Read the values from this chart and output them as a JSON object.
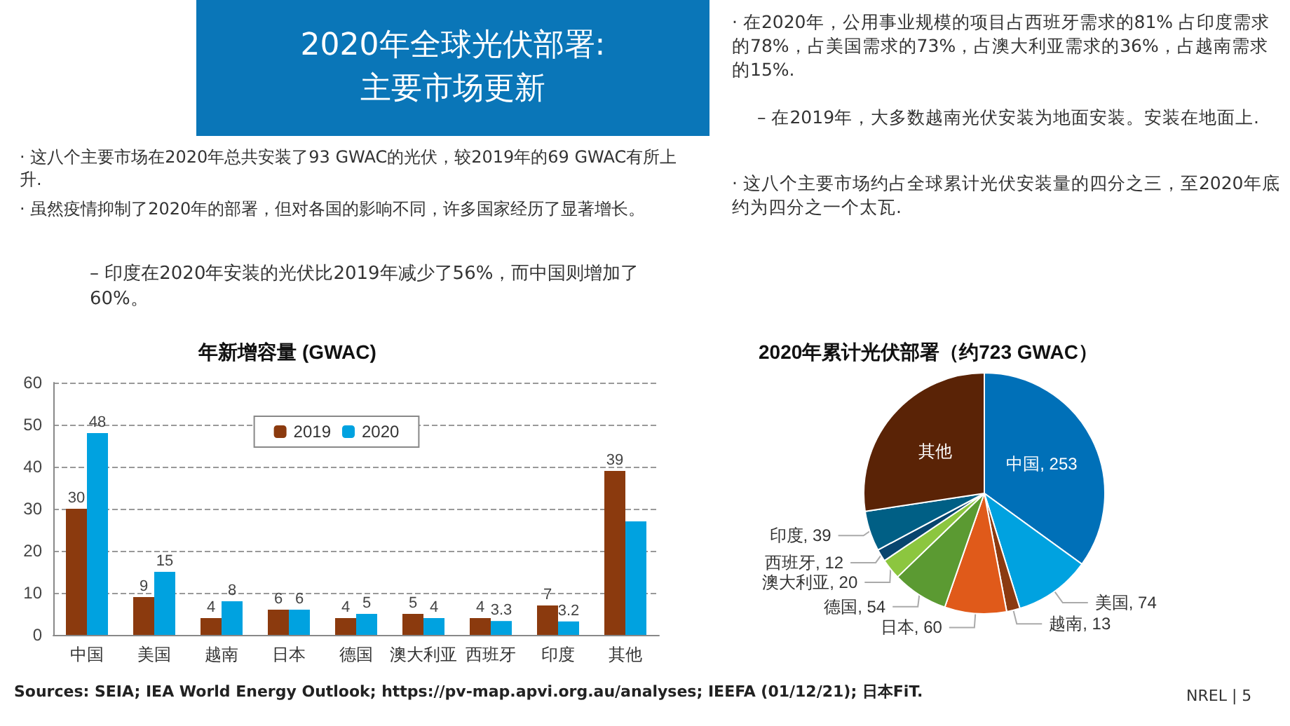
{
  "chart_data": [
    {
      "type": "other",
      "title": "2020年全球光伏部署:\n主要市场更新",
      "annotations": [
        "· 这八个主要市场在2020年总共安装了93 GWAC的光伏，较2019年的69 GWAC有所上升.",
        "· 虽然疫情抑制了2020年的部署，但对各国的影响不同，许多国家经历了显著增长。",
        "– 印度在2020年安装的光伏比2019年减少了56%，而中国则增加了60%。",
        "· 在2020年，公用事业规模的项目占西班牙需求的81% 占印度需求的78%，占美国需求的73%，占澳大利亚需求的36%，占越南需求的15%.",
        "– 在2019年，大多数越南光伏安装为地面安装。安装在地面上.",
        "· 这八个主要市场约占全球累计光伏安装量的四分之三，至2020年底约为四分之一个太瓦.",
        "Sources: SEIA; IEA World Energy Outlook; https://pv-map.apvi.org.au/analyses; IEEFA (01/12/21); 日本FiT.",
        "NREL | 5"
      ]
    },
    {
      "type": "bar",
      "title": "年新增容量 (GWAC)",
      "categories": [
        "中国",
        "美国",
        "越南",
        "日本",
        "德国",
        "澳大利亚",
        "西班牙",
        "印度",
        "其他"
      ],
      "series": [
        {
          "name": "2019",
          "color": "#8b3a0e",
          "values": [
            30,
            9,
            4,
            6,
            4,
            5,
            4,
            7,
            39
          ],
          "value_labels": [
            "30",
            "9",
            "4",
            "6",
            "4",
            "5",
            "4",
            "7",
            "39"
          ]
        },
        {
          "name": "2020",
          "color": "#00a2e0",
          "values": [
            48,
            15,
            8,
            6,
            5,
            4,
            3.3,
            3.2,
            27
          ],
          "value_labels": [
            "48",
            "15",
            "8",
            "6",
            "5",
            "4",
            "3.3",
            "3.2",
            null
          ]
        }
      ],
      "ylim": [
        0,
        60
      ],
      "yticks": [
        0,
        10,
        20,
        30,
        40,
        50,
        60
      ],
      "grid": "y",
      "legend": "top"
    },
    {
      "type": "pie",
      "title": "2020年累计光伏部署（约723 GWAC）",
      "categories": [
        "中国",
        "美国",
        "越南",
        "日本",
        "德国",
        "澳大利亚",
        "西班牙",
        "印度",
        "其他"
      ],
      "values": [
        253,
        74,
        13,
        60,
        54,
        20,
        12,
        39,
        198
      ],
      "value_labels": [
        "253",
        "74",
        "13",
        "60",
        "54",
        "20",
        "12",
        "39",
        null
      ],
      "colors": [
        "#0070b8",
        "#00a2e0",
        "#8b3a10",
        "#e05a1a",
        "#5b9a32",
        "#8cc63f",
        "#08456e",
        "#005f85",
        "#5a2306"
      ]
    }
  ]
}
